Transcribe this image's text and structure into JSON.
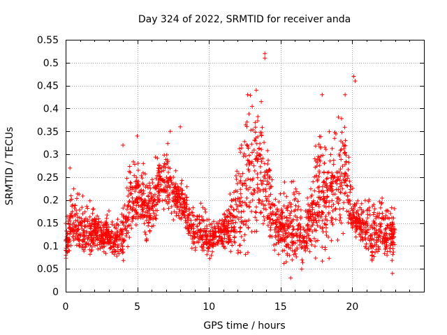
{
  "chart_data": {
    "type": "scatter",
    "title": "Day 324 of 2022, SRMTID for receiver anda",
    "xlabel": "GPS time / hours",
    "ylabel": "SRMTID / TECUs",
    "xlim": [
      0,
      25
    ],
    "ylim": [
      0,
      0.55
    ],
    "x_ticks": [
      0,
      5,
      10,
      15,
      20
    ],
    "x_tick_labels": [
      "0",
      "5",
      "10",
      "15",
      "20"
    ],
    "y_ticks": [
      0,
      0.05,
      0.1,
      0.15,
      0.2,
      0.25,
      0.3,
      0.35,
      0.4,
      0.45,
      0.5,
      0.55
    ],
    "y_tick_labels": [
      "0",
      "0.05",
      "0.1",
      "0.15",
      "0.2",
      "0.25",
      "0.3",
      "0.35",
      "0.4",
      "0.45",
      "0.5",
      "0.55"
    ],
    "grid": true,
    "marker": "+",
    "color": "#ff0000",
    "series": [
      {
        "name": "SRMTID",
        "envelope_hours": [
          0,
          0.5,
          1,
          1.5,
          2,
          2.5,
          3,
          3.5,
          4,
          4.5,
          5,
          5.5,
          6,
          6.5,
          7,
          7.5,
          8,
          8.5,
          9,
          9.5,
          10,
          10.5,
          11,
          11.5,
          12,
          12.5,
          13,
          13.5,
          14,
          14.5,
          15,
          15.5,
          16,
          16.5,
          17,
          17.5,
          18,
          18.5,
          19,
          19.5,
          20,
          20.5,
          21,
          21.5,
          22,
          22.5,
          23
        ],
        "envelope_low": [
          0.05,
          0.08,
          0.08,
          0.06,
          0.09,
          0.08,
          0.08,
          0.07,
          0.06,
          0.11,
          0.12,
          0.1,
          0.11,
          0.16,
          0.17,
          0.15,
          0.15,
          0.11,
          0.08,
          0.07,
          0.06,
          0.09,
          0.08,
          0.07,
          0.05,
          0.05,
          0.09,
          0.13,
          0.11,
          0.09,
          0.06,
          0.05,
          0.04,
          0.04,
          0.08,
          0.06,
          0.05,
          0.06,
          0.08,
          0.1,
          0.12,
          0.1,
          0.06,
          0.06,
          0.07,
          0.06,
          0.06
        ],
        "envelope_high": [
          0.17,
          0.27,
          0.24,
          0.23,
          0.2,
          0.18,
          0.19,
          0.18,
          0.21,
          0.32,
          0.34,
          0.3,
          0.27,
          0.35,
          0.36,
          0.3,
          0.27,
          0.24,
          0.21,
          0.22,
          0.18,
          0.18,
          0.21,
          0.23,
          0.35,
          0.43,
          0.48,
          0.52,
          0.41,
          0.25,
          0.26,
          0.26,
          0.3,
          0.21,
          0.23,
          0.43,
          0.38,
          0.39,
          0.43,
          0.47,
          0.24,
          0.21,
          0.24,
          0.23,
          0.24,
          0.21,
          0.2
        ],
        "notable_points": [
          {
            "x": 13.9,
            "y": 0.52
          },
          {
            "x": 13.9,
            "y": 0.51
          },
          {
            "x": 20.1,
            "y": 0.47
          },
          {
            "x": 20.2,
            "y": 0.46
          },
          {
            "x": 17.9,
            "y": 0.43
          },
          {
            "x": 19.5,
            "y": 0.43
          },
          {
            "x": 13.3,
            "y": 0.44
          },
          {
            "x": 12.7,
            "y": 0.43
          },
          {
            "x": 8.0,
            "y": 0.36
          },
          {
            "x": 7.3,
            "y": 0.35
          },
          {
            "x": 5.0,
            "y": 0.34
          },
          {
            "x": 4.0,
            "y": 0.32
          },
          {
            "x": 0.3,
            "y": 0.27
          },
          {
            "x": 15.7,
            "y": 0.03
          },
          {
            "x": 22.8,
            "y": 0.04
          }
        ],
        "point_count": 2400
      }
    ]
  }
}
